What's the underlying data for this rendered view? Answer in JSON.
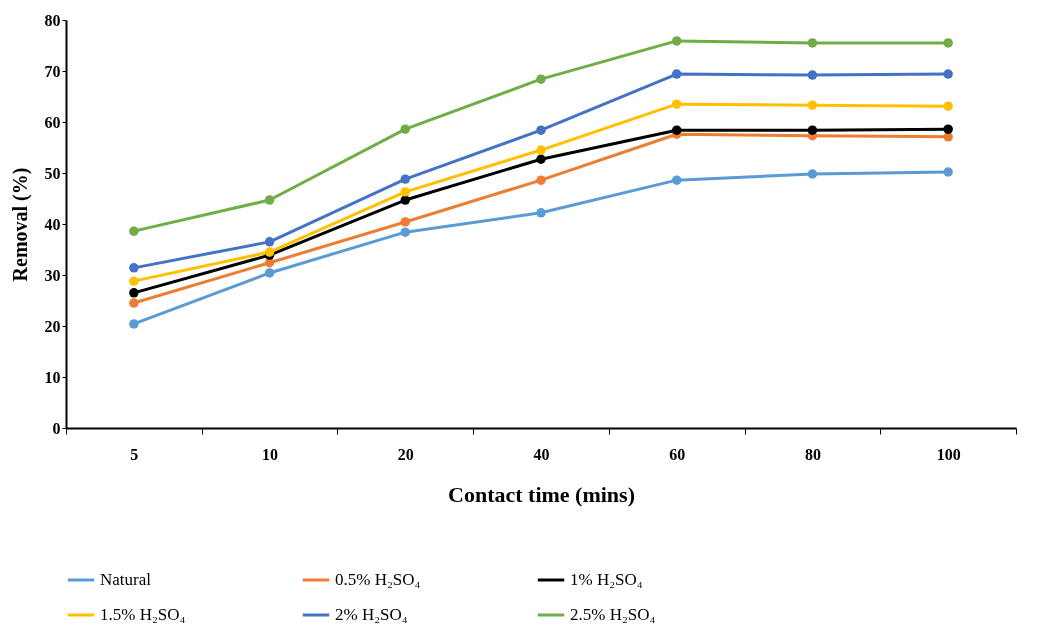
{
  "chart_data": {
    "type": "line",
    "xlabel": "Contact time (mins)",
    "ylabel": "Removal (%)",
    "categories": [
      "5",
      "10",
      "20",
      "40",
      "60",
      "80",
      "100"
    ],
    "ylim": [
      0,
      80
    ],
    "yticks": [
      0,
      10,
      20,
      30,
      40,
      50,
      60,
      70,
      80
    ],
    "grid": false,
    "legend": "bottom",
    "marker": "circle",
    "line_style": "solid",
    "series": [
      {
        "name": "Natural",
        "color": "#5b9bd5",
        "values": [
          20.4,
          30.4,
          38.4,
          42.2,
          48.6,
          49.8,
          50.2
        ]
      },
      {
        "name": "0.5% H₂SO₄",
        "color": "#ed7d31",
        "values": [
          24.5,
          32.4,
          40.4,
          48.6,
          57.6,
          57.3,
          57.1
        ]
      },
      {
        "name": "1% H₂SO₄",
        "color": "#000000",
        "values": [
          26.5,
          33.9,
          44.7,
          52.7,
          58.4,
          58.4,
          58.6
        ]
      },
      {
        "name": "1.5% H₂SO₄",
        "color": "#ffc000",
        "values": [
          28.8,
          34.5,
          46.3,
          54.5,
          63.5,
          63.3,
          63.1
        ]
      },
      {
        "name": "2% H₂SO₄",
        "color": "#4472c4",
        "values": [
          31.4,
          36.5,
          48.8,
          58.4,
          69.4,
          69.2,
          69.4
        ]
      },
      {
        "name": "2.5% H₂SO₄",
        "color": "#70ad47",
        "values": [
          38.6,
          44.7,
          58.6,
          68.4,
          75.9,
          75.5,
          75.5
        ]
      }
    ]
  }
}
